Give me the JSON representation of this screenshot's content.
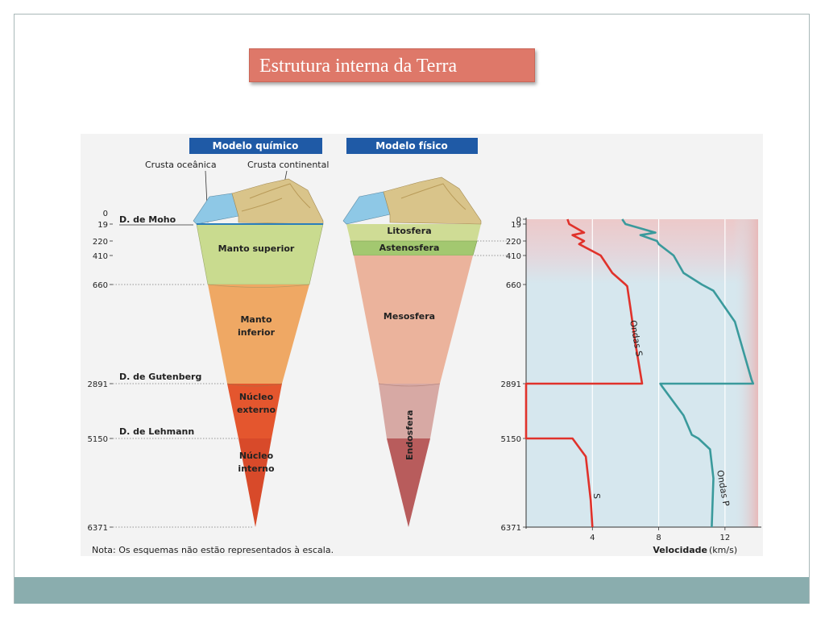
{
  "slide": {
    "title": "Estrutura interna da Terra"
  },
  "figure": {
    "chemical_model": {
      "header": "Modelo químico",
      "surface_labels": [
        "Crusta oceânica",
        "Crusta continental"
      ],
      "layers": [
        "Manto superior",
        "Manto",
        "inferior",
        "Núcleo",
        "externo",
        "Núcleo",
        "interno"
      ],
      "discontinuities": [
        "D. de Moho",
        "D. de Gutenberg",
        "D. de Lehmann"
      ]
    },
    "physical_model": {
      "header": "Modelo físico",
      "layers": [
        "Litosfera",
        "Astenosfera",
        "Mesosfera",
        "Endosfera"
      ]
    },
    "depth_ticks_left": [
      "0",
      "19",
      "220",
      "410",
      "660",
      "2891",
      "5150",
      "6371"
    ],
    "note": "Nota: Os esquemas não estão representados à escala.",
    "colors": {
      "header_blue": "#1f5aa6",
      "ocean": "#8ec8e6",
      "crust": "#d9c48a",
      "litosfera": "#cfdc95",
      "astenosfera": "#a3c870",
      "manto_superior": "#c9db8f",
      "manto_inferior": "#efa864",
      "nucleo_externo": "#e4562e",
      "nucleo_interno": "#d84a2a",
      "mesosfera": "#ebb39c",
      "endosfera_upper": "#d7a9a4",
      "endosfera_lower": "#b85c5c",
      "chart_bg": "#d6e7ee",
      "s_wave": "#e0322b",
      "p_wave": "#3a9a9c"
    }
  },
  "chart_data": {
    "type": "line",
    "xlabel": "Velocidade",
    "xunit": "(km/s)",
    "x_ticks": [
      4,
      8,
      12
    ],
    "y_ticks": [
      0,
      19,
      220,
      410,
      660,
      2891,
      5150,
      6371
    ],
    "y_tick_labels": [
      "0",
      "19",
      "220",
      "410",
      "660",
      "2891",
      "5150",
      "6371"
    ],
    "xlim": [
      0,
      14
    ],
    "series": [
      {
        "name": "Ondas S",
        "points": [
          [
            2.5,
            0
          ],
          [
            2.6,
            19
          ],
          [
            3.5,
            120
          ],
          [
            2.8,
            150
          ],
          [
            3.5,
            220
          ],
          [
            3.2,
            260
          ],
          [
            4.5,
            410
          ],
          [
            5.2,
            560
          ],
          [
            6.0,
            660
          ],
          [
            6.1,
            700
          ],
          [
            6.3,
            1200
          ],
          [
            6.6,
            2000
          ],
          [
            7.0,
            2891
          ],
          [
            0,
            2891
          ],
          [
            0,
            5150
          ],
          [
            2.8,
            5150
          ],
          [
            3.6,
            5400
          ],
          [
            3.9,
            6000
          ],
          [
            4.0,
            6371
          ]
        ]
      },
      {
        "name": "S",
        "points": []
      },
      {
        "name": "Ondas P",
        "points": [
          [
            5.8,
            0
          ],
          [
            6.0,
            19
          ],
          [
            7.8,
            120
          ],
          [
            6.9,
            150
          ],
          [
            7.9,
            220
          ],
          [
            8.0,
            260
          ],
          [
            8.9,
            410
          ],
          [
            9.5,
            560
          ],
          [
            10.6,
            660
          ],
          [
            11.3,
            800
          ],
          [
            12.6,
            1500
          ],
          [
            13.6,
            2800
          ],
          [
            13.7,
            2891
          ],
          [
            8.1,
            2891
          ],
          [
            8.2,
            3000
          ],
          [
            9.5,
            4200
          ],
          [
            10.0,
            5000
          ],
          [
            10.4,
            5150
          ],
          [
            11.1,
            5300
          ],
          [
            11.3,
            5700
          ],
          [
            11.2,
            6371
          ]
        ]
      }
    ]
  }
}
